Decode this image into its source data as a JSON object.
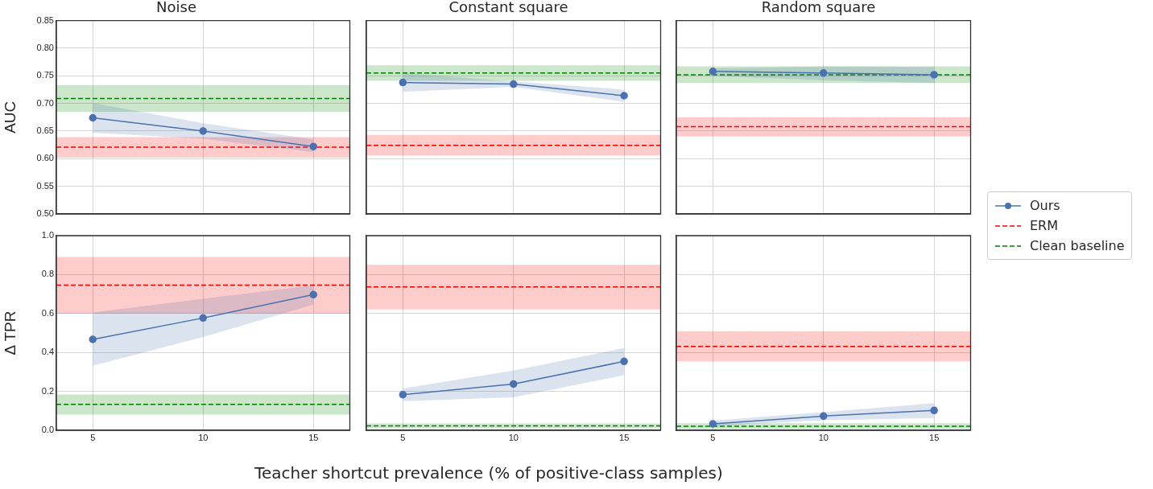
{
  "chart_data": [
    {
      "type": "line",
      "title": "Noise",
      "ylabel": "AUC",
      "xlim": [
        3.35,
        16.65
      ],
      "xticks": [
        5,
        10,
        15
      ],
      "ylim": [
        0.5,
        0.85
      ],
      "yticks": [
        {
          "value": 0.5,
          "label": "0.50"
        },
        0.55,
        {
          "value": 0.6,
          "label": "0.60"
        },
        0.65,
        {
          "value": 0.7,
          "label": "0.70"
        },
        0.75,
        {
          "value": 0.8,
          "label": "0.80"
        },
        0.85
      ],
      "tick_labels": "y",
      "grid": true,
      "legend": "right",
      "marker": "circle",
      "series": [
        {
          "name": "Ours",
          "color": "#4c72b0",
          "x": [
            5,
            10,
            15
          ],
          "values": [
            0.674,
            0.65,
            0.622
          ],
          "lower": [
            0.647,
            0.636,
            0.612
          ],
          "upper": [
            0.701,
            0.664,
            0.635
          ]
        },
        {
          "name": "ERM",
          "color": "#ff0000",
          "line_style": "dashed",
          "marker": "none",
          "x": [
            3.35,
            16.65
          ],
          "values": [
            0.621,
            0.621
          ],
          "lower": [
            0.602,
            0.602
          ],
          "upper": [
            0.639,
            0.639
          ]
        },
        {
          "name": "Clean baseline",
          "color": "#008000",
          "line_style": "dashed",
          "marker": "none",
          "x": [
            3.35,
            16.65
          ],
          "values": [
            0.709,
            0.709
          ],
          "lower": [
            0.685,
            0.685
          ],
          "upper": [
            0.733,
            0.733
          ]
        }
      ]
    },
    {
      "type": "line",
      "title": "Constant square",
      "xlim": [
        3.35,
        16.65
      ],
      "xticks": [
        5,
        10,
        15
      ],
      "ylim": [
        0.5,
        0.85
      ],
      "yticks": [
        0.5,
        0.55,
        0.6,
        0.65,
        0.7,
        0.75,
        0.8,
        0.85
      ],
      "tick_labels": false,
      "grid": true,
      "marker": "circle",
      "series": [
        {
          "color": "#4c72b0",
          "x": [
            5,
            10,
            15
          ],
          "values": [
            0.738,
            0.735,
            0.714
          ],
          "lower": [
            0.721,
            0.73,
            0.703
          ],
          "upper": [
            0.755,
            0.74,
            0.725
          ]
        },
        {
          "color": "#ff0000",
          "line_style": "dashed",
          "marker": "none",
          "x": [
            3.35,
            16.65
          ],
          "values": [
            0.624,
            0.624
          ],
          "lower": [
            0.606,
            0.606
          ],
          "upper": [
            0.643,
            0.643
          ]
        },
        {
          "color": "#008000",
          "line_style": "dashed",
          "marker": "none",
          "x": [
            3.35,
            16.65
          ],
          "values": [
            0.755,
            0.755
          ],
          "lower": [
            0.741,
            0.741
          ],
          "upper": [
            0.769,
            0.769
          ]
        }
      ]
    },
    {
      "type": "line",
      "title": "Random square",
      "xlim": [
        3.35,
        16.65
      ],
      "xticks": [
        5,
        10,
        15
      ],
      "ylim": [
        0.5,
        0.85
      ],
      "yticks": [
        0.5,
        0.55,
        0.6,
        0.65,
        0.7,
        0.75,
        0.8,
        0.85
      ],
      "tick_labels": false,
      "grid": true,
      "marker": "circle",
      "series": [
        {
          "color": "#4c72b0",
          "x": [
            5,
            10,
            15
          ],
          "values": [
            0.758,
            0.755,
            0.752
          ],
          "lower": [
            0.75,
            0.742,
            0.737
          ],
          "upper": [
            0.763,
            0.767,
            0.766
          ]
        },
        {
          "color": "#ff0000",
          "line_style": "dashed",
          "marker": "none",
          "x": [
            3.35,
            16.65
          ],
          "values": [
            0.658,
            0.658
          ],
          "lower": [
            0.64,
            0.64
          ],
          "upper": [
            0.675,
            0.675
          ]
        },
        {
          "color": "#008000",
          "line_style": "dashed",
          "marker": "none",
          "x": [
            3.35,
            16.65
          ],
          "values": [
            0.752,
            0.752
          ],
          "lower": [
            0.737,
            0.737
          ],
          "upper": [
            0.767,
            0.767
          ]
        }
      ]
    },
    {
      "type": "line",
      "ylabel": "Δ TPR",
      "xlim": [
        3.35,
        16.65
      ],
      "xticks": [
        5,
        10,
        15
      ],
      "ylim": [
        0,
        1
      ],
      "yticks": [
        {
          "value": 0,
          "label": "0.0"
        },
        0.2,
        0.4,
        0.6,
        0.8,
        {
          "value": 1,
          "label": "1.0"
        }
      ],
      "grid": true,
      "marker": "circle",
      "series": [
        {
          "color": "#4c72b0",
          "x": [
            5,
            10,
            15
          ],
          "values": [
            0.467,
            0.577,
            0.697
          ],
          "lower": [
            0.332,
            0.479,
            0.646
          ],
          "upper": [
            0.605,
            0.676,
            0.745
          ]
        },
        {
          "color": "#ff0000",
          "line_style": "dashed",
          "marker": "none",
          "x": [
            3.35,
            16.65
          ],
          "values": [
            0.746,
            0.746
          ],
          "lower": [
            0.599,
            0.599
          ],
          "upper": [
            0.891,
            0.891
          ]
        },
        {
          "color": "#008000",
          "line_style": "dashed",
          "marker": "none",
          "x": [
            3.35,
            16.65
          ],
          "values": [
            0.133,
            0.133
          ],
          "lower": [
            0.081,
            0.081
          ],
          "upper": [
            0.184,
            0.184
          ]
        }
      ]
    },
    {
      "type": "line",
      "xlabel": "Teacher shortcut prevalence (% of positive-class samples)",
      "xlim": [
        3.35,
        16.65
      ],
      "xticks": [
        5,
        10,
        15
      ],
      "ylim": [
        0,
        1
      ],
      "yticks": [
        0,
        0.2,
        0.4,
        0.6,
        0.8,
        1.0
      ],
      "tick_labels": "x",
      "grid": true,
      "marker": "circle",
      "series": [
        {
          "color": "#4c72b0",
          "x": [
            5,
            10,
            15
          ],
          "values": [
            0.183,
            0.238,
            0.354
          ],
          "lower": [
            0.15,
            0.169,
            0.283
          ],
          "upper": [
            0.215,
            0.307,
            0.423
          ]
        },
        {
          "color": "#ff0000",
          "line_style": "dashed",
          "marker": "none",
          "x": [
            3.35,
            16.65
          ],
          "values": [
            0.737,
            0.737
          ],
          "lower": [
            0.621,
            0.621
          ],
          "upper": [
            0.85,
            0.85
          ]
        },
        {
          "color": "#008000",
          "line_style": "dashed",
          "marker": "none",
          "x": [
            3.35,
            16.65
          ],
          "values": [
            0.023,
            0.023
          ],
          "lower": [
            0.01,
            0.01
          ],
          "upper": [
            0.035,
            0.035
          ]
        }
      ]
    },
    {
      "type": "line",
      "xlim": [
        3.35,
        16.65
      ],
      "xticks": [
        5,
        10,
        15
      ],
      "ylim": [
        0,
        1
      ],
      "yticks": [
        0,
        0.2,
        0.4,
        0.6,
        0.8,
        1.0
      ],
      "tick_labels": "x",
      "grid": true,
      "marker": "circle",
      "series": [
        {
          "color": "#4c72b0",
          "x": [
            5,
            10,
            15
          ],
          "values": [
            0.033,
            0.073,
            0.102
          ],
          "lower": [
            0.022,
            0.052,
            0.063
          ],
          "upper": [
            0.05,
            0.093,
            0.139
          ]
        },
        {
          "color": "#ff0000",
          "line_style": "dashed",
          "marker": "none",
          "x": [
            3.35,
            16.65
          ],
          "values": [
            0.431,
            0.431
          ],
          "lower": [
            0.354,
            0.354
          ],
          "upper": [
            0.508,
            0.508
          ]
        },
        {
          "color": "#008000",
          "line_style": "dashed",
          "marker": "none",
          "x": [
            3.35,
            16.65
          ],
          "values": [
            0.021,
            0.021
          ],
          "lower": [
            0.008,
            0.008
          ],
          "upper": [
            0.036,
            0.036
          ]
        }
      ]
    }
  ]
}
